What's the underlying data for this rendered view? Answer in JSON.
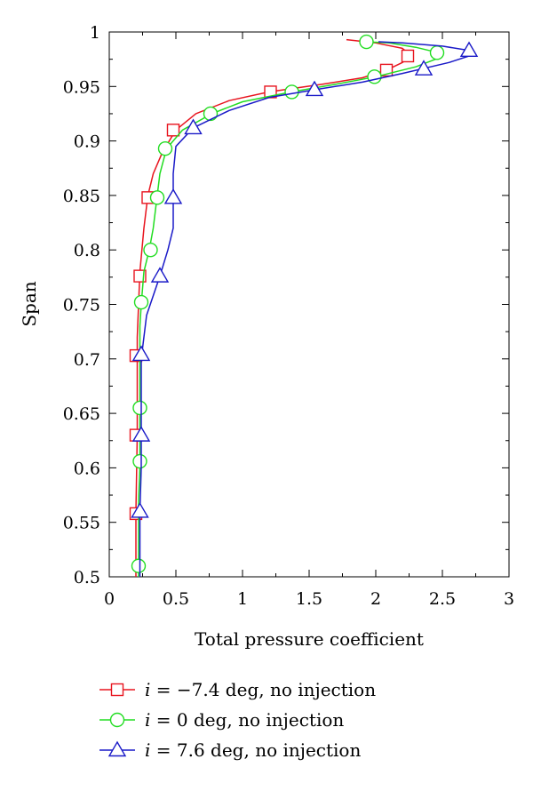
{
  "chart_data": {
    "type": "line",
    "title": "",
    "xlabel": "Total pressure coefficient",
    "ylabel": "Span",
    "xlim": [
      0,
      3
    ],
    "ylim": [
      0.5,
      1
    ],
    "xticks": [
      0,
      0.5,
      1,
      1.5,
      2,
      2.5,
      3
    ],
    "yticks": [
      0.5,
      0.55,
      0.6,
      0.65,
      0.7,
      0.75,
      0.8,
      0.85,
      0.9,
      0.95,
      1
    ],
    "xtick_labels": [
      "0",
      "0.5",
      "1",
      "1.5",
      "2",
      "2.5",
      "3"
    ],
    "ytick_labels": [
      "0.5",
      "0.55",
      "0.6",
      "0.65",
      "0.7",
      "0.75",
      "0.8",
      "0.85",
      "0.9",
      "0.95",
      "1"
    ],
    "grid": false,
    "legend_position": "below",
    "series": [
      {
        "name": "i = −7.4 deg, no injection",
        "legend_prefix": "i",
        "legend_suffix": " = −7.4 deg, no injection",
        "color": "#e8141e",
        "marker": "square",
        "line": [
          [
            0.2,
            0.5
          ],
          [
            0.2,
            0.56
          ],
          [
            0.21,
            0.63
          ],
          [
            0.21,
            0.7
          ],
          [
            0.21,
            0.72
          ],
          [
            0.22,
            0.75
          ],
          [
            0.23,
            0.78
          ],
          [
            0.26,
            0.82
          ],
          [
            0.29,
            0.85
          ],
          [
            0.33,
            0.87
          ],
          [
            0.4,
            0.89
          ],
          [
            0.5,
            0.91
          ],
          [
            0.65,
            0.925
          ],
          [
            0.9,
            0.937
          ],
          [
            1.2,
            0.945
          ],
          [
            1.6,
            0.952
          ],
          [
            1.9,
            0.958
          ],
          [
            2.08,
            0.965
          ],
          [
            2.2,
            0.972
          ],
          [
            2.27,
            0.978
          ],
          [
            2.2,
            0.985
          ],
          [
            2.0,
            0.99
          ],
          [
            1.78,
            0.993
          ]
        ],
        "markers": [
          [
            0.2,
            0.558
          ],
          [
            0.2,
            0.63
          ],
          [
            0.2,
            0.703
          ],
          [
            0.23,
            0.776
          ],
          [
            0.29,
            0.848
          ],
          [
            0.48,
            0.91
          ],
          [
            1.21,
            0.945
          ],
          [
            2.08,
            0.965
          ],
          [
            2.24,
            0.978
          ]
        ]
      },
      {
        "name": "i = 0 deg, no injection",
        "legend_prefix": "i",
        "legend_suffix": " = 0 deg, no injection",
        "color": "#22dd22",
        "marker": "circle",
        "line": [
          [
            0.22,
            0.5
          ],
          [
            0.22,
            0.53
          ],
          [
            0.22,
            0.57
          ],
          [
            0.23,
            0.6
          ],
          [
            0.23,
            0.62
          ],
          [
            0.23,
            0.65
          ],
          [
            0.23,
            0.68
          ],
          [
            0.23,
            0.71
          ],
          [
            0.23,
            0.73
          ],
          [
            0.24,
            0.75
          ],
          [
            0.26,
            0.78
          ],
          [
            0.3,
            0.8
          ],
          [
            0.33,
            0.82
          ],
          [
            0.36,
            0.85
          ],
          [
            0.38,
            0.87
          ],
          [
            0.43,
            0.893
          ],
          [
            0.55,
            0.91
          ],
          [
            0.77,
            0.925
          ],
          [
            1.0,
            0.936
          ],
          [
            1.37,
            0.945
          ],
          [
            1.7,
            0.952
          ],
          [
            2.0,
            0.959
          ],
          [
            2.3,
            0.968
          ],
          [
            2.45,
            0.975
          ],
          [
            2.47,
            0.981
          ],
          [
            2.3,
            0.986
          ],
          [
            2.1,
            0.99
          ],
          [
            1.92,
            0.991
          ]
        ],
        "markers": [
          [
            0.22,
            0.51
          ],
          [
            0.23,
            0.606
          ],
          [
            0.23,
            0.655
          ],
          [
            0.24,
            0.752
          ],
          [
            0.31,
            0.8
          ],
          [
            0.36,
            0.848
          ],
          [
            0.42,
            0.893
          ],
          [
            0.76,
            0.925
          ],
          [
            1.37,
            0.945
          ],
          [
            1.99,
            0.959
          ],
          [
            2.46,
            0.981
          ],
          [
            1.93,
            0.991
          ]
        ]
      },
      {
        "name": "i = 7.6 deg, no injection",
        "legend_prefix": "i",
        "legend_suffix": " = 7.6 deg, no injection",
        "color": "#1a1ac8",
        "marker": "triangle",
        "line": [
          [
            0.23,
            0.5
          ],
          [
            0.23,
            0.56
          ],
          [
            0.24,
            0.6
          ],
          [
            0.24,
            0.63
          ],
          [
            0.24,
            0.66
          ],
          [
            0.24,
            0.7
          ],
          [
            0.28,
            0.74
          ],
          [
            0.38,
            0.776
          ],
          [
            0.44,
            0.8
          ],
          [
            0.48,
            0.82
          ],
          [
            0.48,
            0.848
          ],
          [
            0.48,
            0.87
          ],
          [
            0.5,
            0.895
          ],
          [
            0.63,
            0.912
          ],
          [
            0.9,
            0.928
          ],
          [
            1.2,
            0.94
          ],
          [
            1.54,
            0.947
          ],
          [
            1.9,
            0.954
          ],
          [
            2.2,
            0.962
          ],
          [
            2.55,
            0.972
          ],
          [
            2.7,
            0.978
          ],
          [
            2.7,
            0.983
          ],
          [
            2.5,
            0.987
          ],
          [
            2.2,
            0.99
          ],
          [
            2.02,
            0.991
          ]
        ],
        "markers": [
          [
            0.23,
            0.56
          ],
          [
            0.24,
            0.63
          ],
          [
            0.24,
            0.704
          ],
          [
            0.38,
            0.776
          ],
          [
            0.48,
            0.848
          ],
          [
            0.63,
            0.912
          ],
          [
            1.54,
            0.947
          ],
          [
            2.36,
            0.966
          ],
          [
            2.7,
            0.983
          ]
        ]
      }
    ]
  }
}
